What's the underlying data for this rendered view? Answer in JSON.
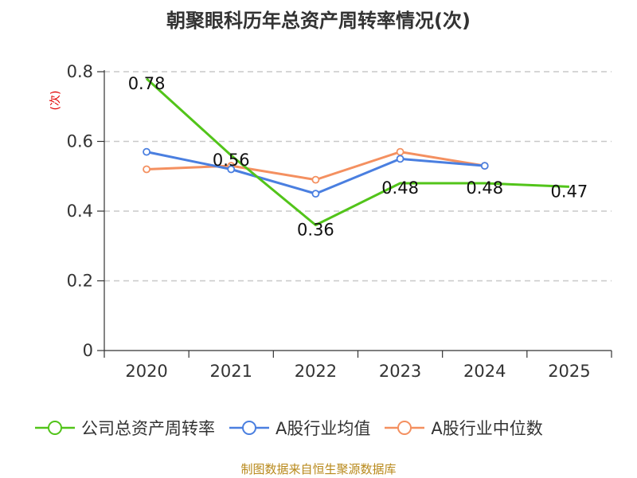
{
  "chart_data": {
    "type": "line",
    "title": "朝聚眼科历年总资产周转率情况(次)",
    "ylabel": "(次)",
    "xlabel": "",
    "categories": [
      "2020",
      "2021",
      "2022",
      "2023",
      "2024",
      "2025"
    ],
    "ylim": [
      0,
      0.8
    ],
    "yticks": [
      0,
      0.2,
      0.4,
      0.6,
      0.8
    ],
    "ytick_labels": [
      "0",
      "0.2",
      "0.4",
      "0.6",
      "0.8"
    ],
    "grid": true,
    "legend_position": "bottom",
    "series": [
      {
        "name": "公司总资产周转率",
        "color": "#52c41a",
        "values": [
          0.78,
          0.56,
          0.36,
          0.48,
          0.48,
          0.47
        ],
        "labels": [
          "0.78",
          "0.56",
          "0.36",
          "0.48",
          "0.48",
          "0.47"
        ]
      },
      {
        "name": "A股行业均值",
        "color": "#4a7fe0",
        "values": [
          0.57,
          0.52,
          0.45,
          0.55,
          0.53,
          null
        ]
      },
      {
        "name": "A股行业中位数",
        "color": "#f49060",
        "values": [
          0.52,
          0.53,
          0.49,
          0.57,
          0.53,
          null
        ]
      }
    ]
  },
  "source": "制图数据来自恒生聚源数据库"
}
